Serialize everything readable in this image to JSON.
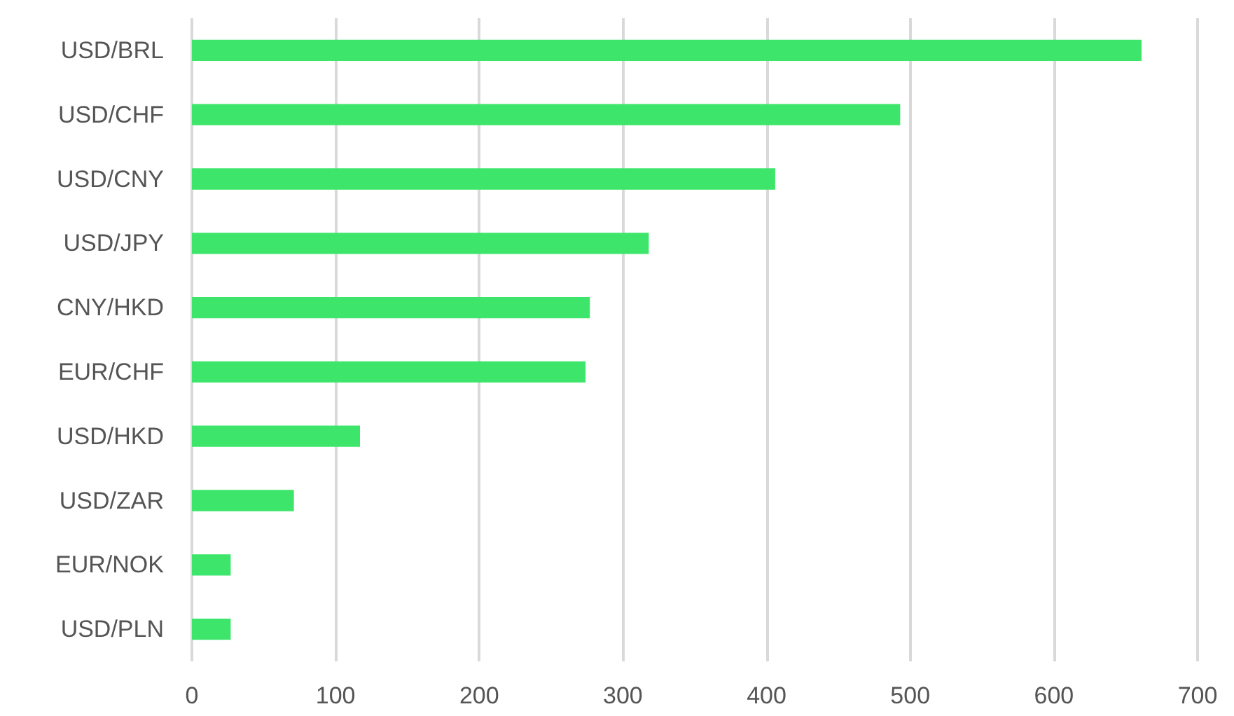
{
  "chart_data": {
    "type": "bar",
    "orientation": "horizontal",
    "categories": [
      "USD/BRL",
      "USD/CHF",
      "USD/CNY",
      "USD/JPY",
      "CNY/HKD",
      "EUR/CHF",
      "USD/HKD",
      "USD/ZAR",
      "EUR/NOK",
      "USD/PLN"
    ],
    "values": [
      661,
      493,
      406,
      318,
      277,
      274,
      117,
      71,
      27,
      27
    ],
    "color": "#3de66a",
    "xlim": [
      0,
      700
    ],
    "xticks": [
      0,
      100,
      200,
      300,
      400,
      500,
      600,
      700
    ],
    "grid": "x"
  }
}
